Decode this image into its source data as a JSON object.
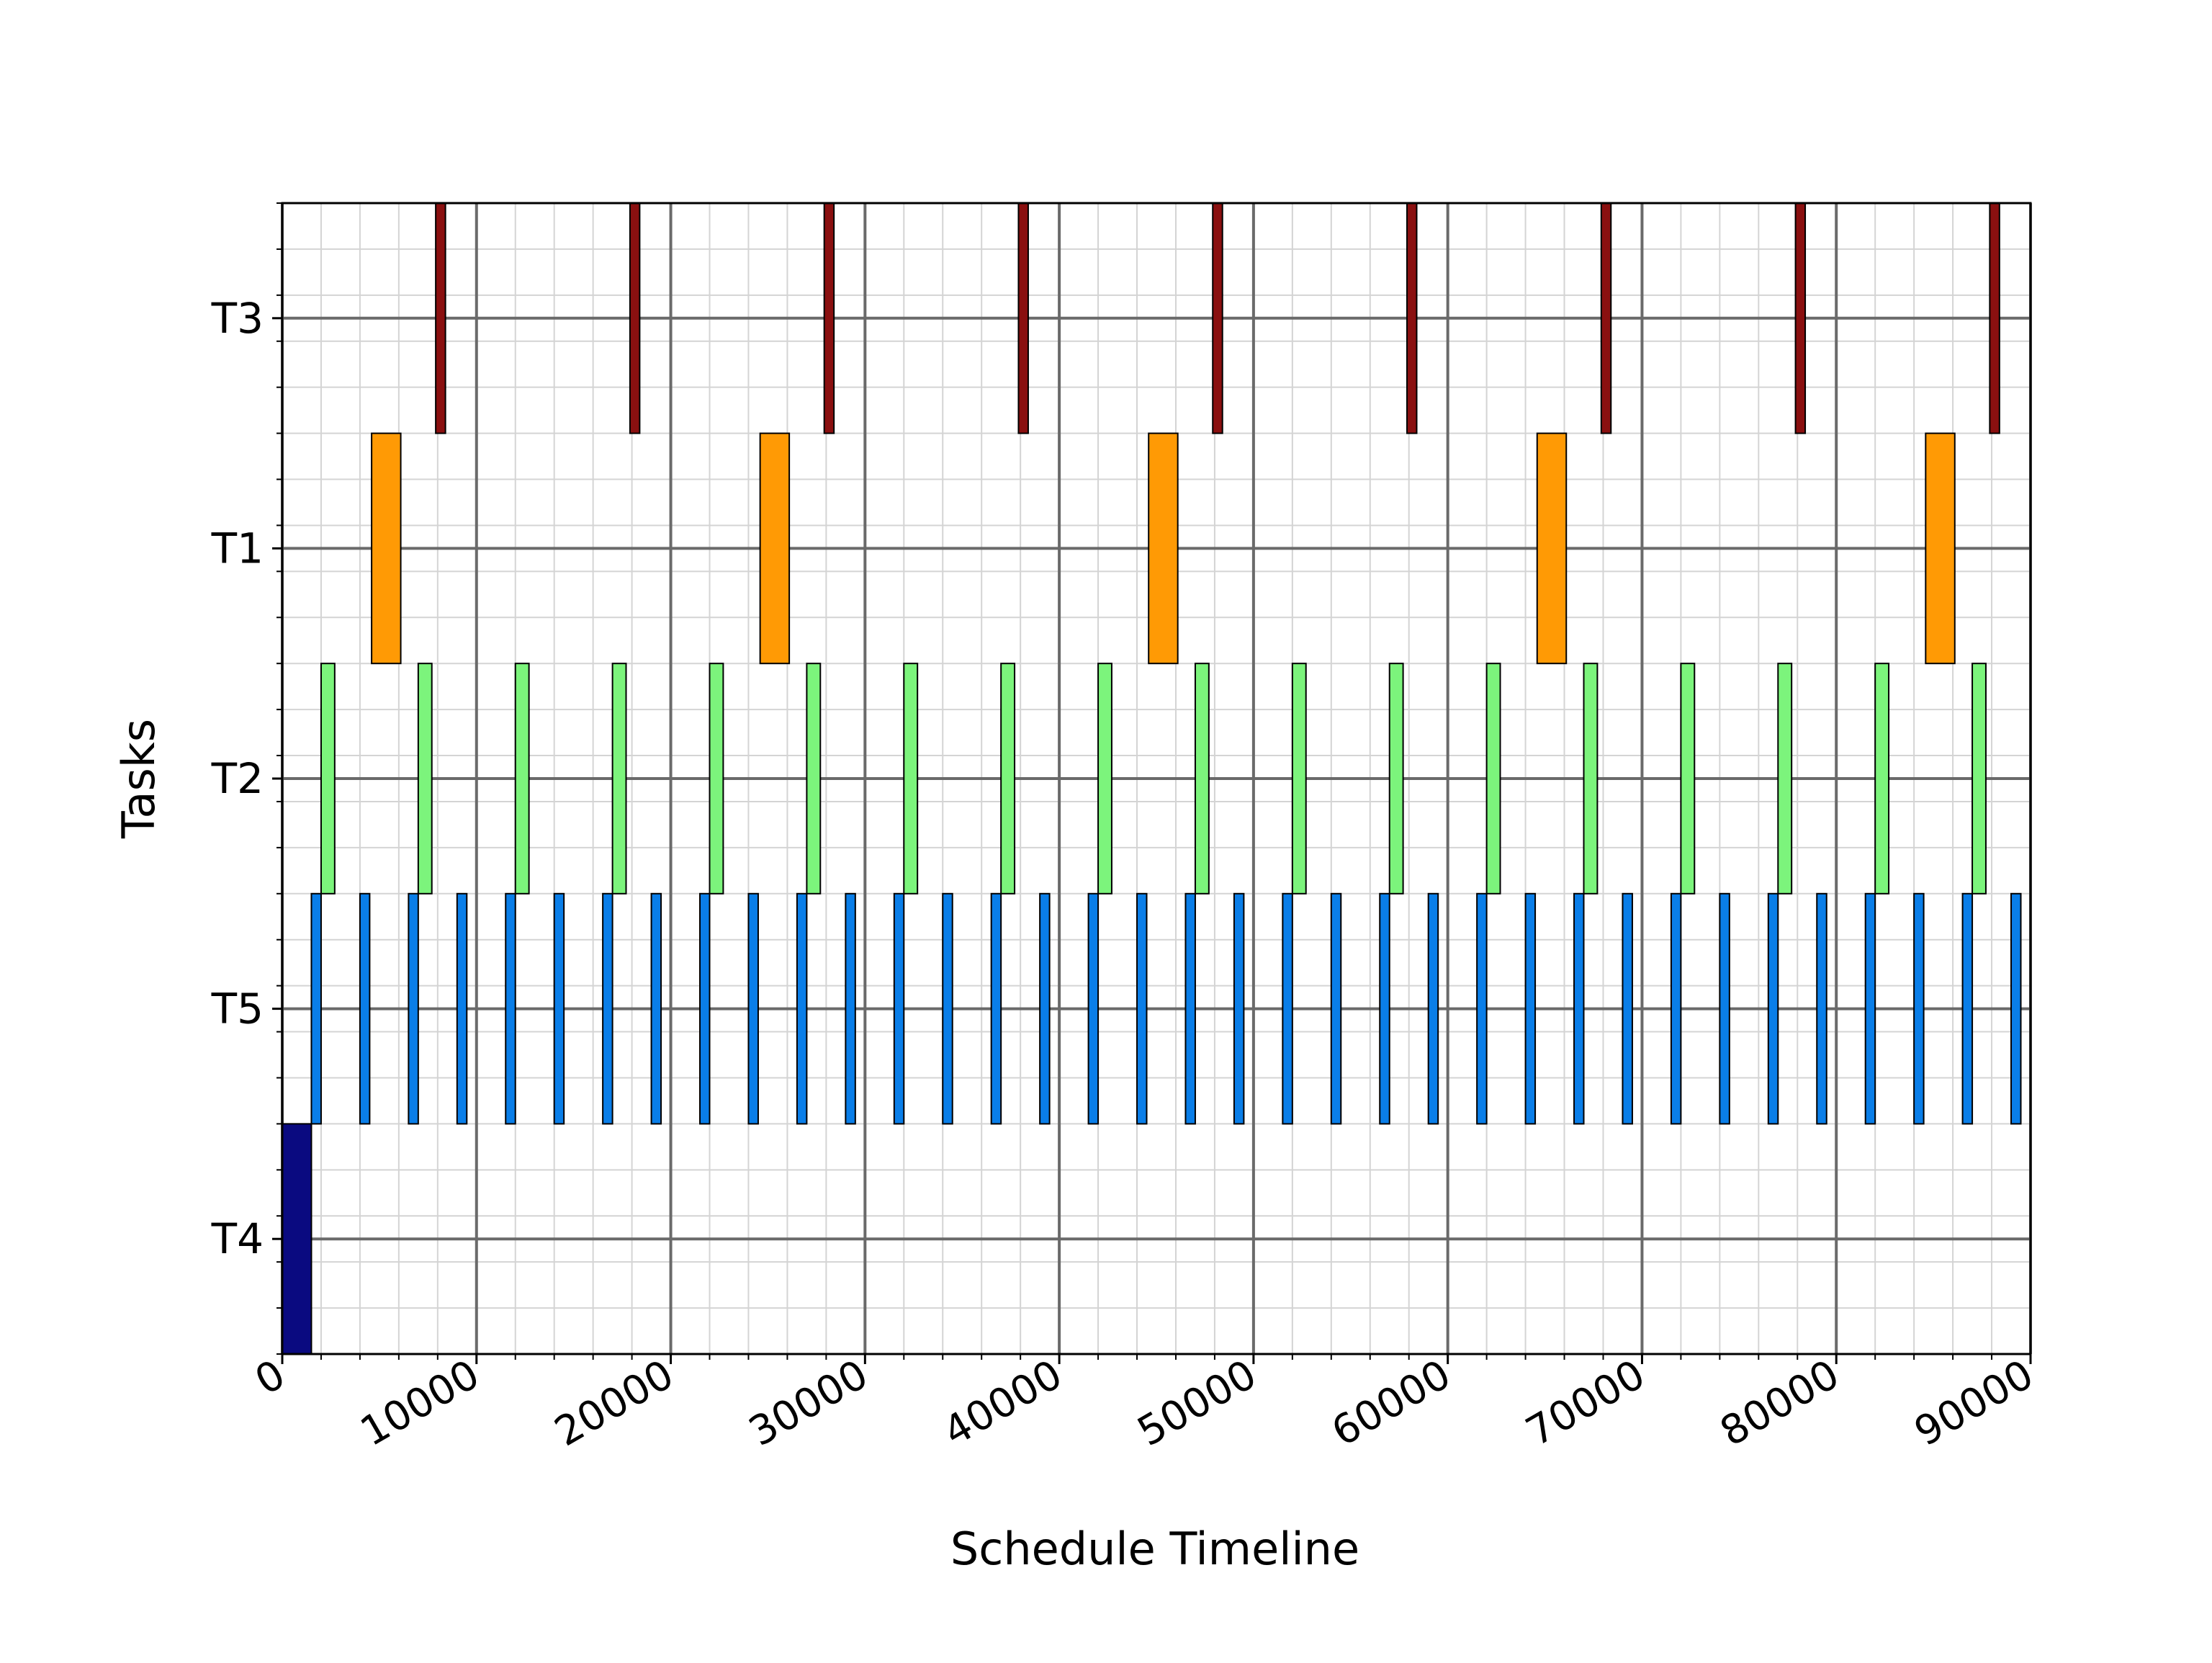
{
  "chart_data": {
    "type": "gantt",
    "xlabel": "Schedule Timeline",
    "ylabel": "Tasks",
    "xlim": [
      0,
      90000
    ],
    "x_ticks": [
      0,
      10000,
      20000,
      30000,
      40000,
      50000,
      60000,
      70000,
      80000,
      90000
    ],
    "x_tick_labels": [
      "0",
      "10000",
      "20000",
      "30000",
      "40000",
      "50000",
      "60000",
      "70000",
      "80000",
      "90000"
    ],
    "x_minor_step": 2000,
    "y_minor_step": 0.2,
    "tasks_bottom_to_top": [
      "T4",
      "T5",
      "T2",
      "T1",
      "T3"
    ],
    "grid": {
      "major": true,
      "minor": true
    },
    "series": [
      {
        "task": "T4",
        "color": "#0a0a80",
        "duration": 1500,
        "starts": [
          0
        ]
      },
      {
        "task": "T5",
        "color": "#0a7ee8",
        "duration": 500,
        "starts": [
          1500,
          4000,
          6500,
          9000,
          11500,
          14000,
          16500,
          19000,
          21500,
          24000,
          26500,
          29000,
          31500,
          34000,
          36500,
          39000,
          41500,
          44000,
          46500,
          49000,
          51500,
          54000,
          56500,
          59000,
          61500,
          64000,
          66500,
          69000,
          71500,
          74000,
          76500,
          79000,
          81500,
          84000,
          86500,
          89000
        ]
      },
      {
        "task": "T2",
        "color": "#7cf47c",
        "duration": 700,
        "starts": [
          2000,
          7000,
          12000,
          17000,
          22000,
          27000,
          32000,
          37000,
          42000,
          47000,
          52000,
          57000,
          62000,
          67000,
          72000,
          77000,
          82000,
          87000
        ]
      },
      {
        "task": "T1",
        "color": "#ff9a05",
        "duration": 1500,
        "starts": [
          4600,
          24600,
          44600,
          64600,
          84600
        ]
      },
      {
        "task": "T3",
        "color": "#8a1010",
        "duration": 500,
        "starts": [
          7900,
          17900,
          27900,
          37900,
          47900,
          57900,
          67900,
          77900,
          87900
        ]
      }
    ]
  }
}
